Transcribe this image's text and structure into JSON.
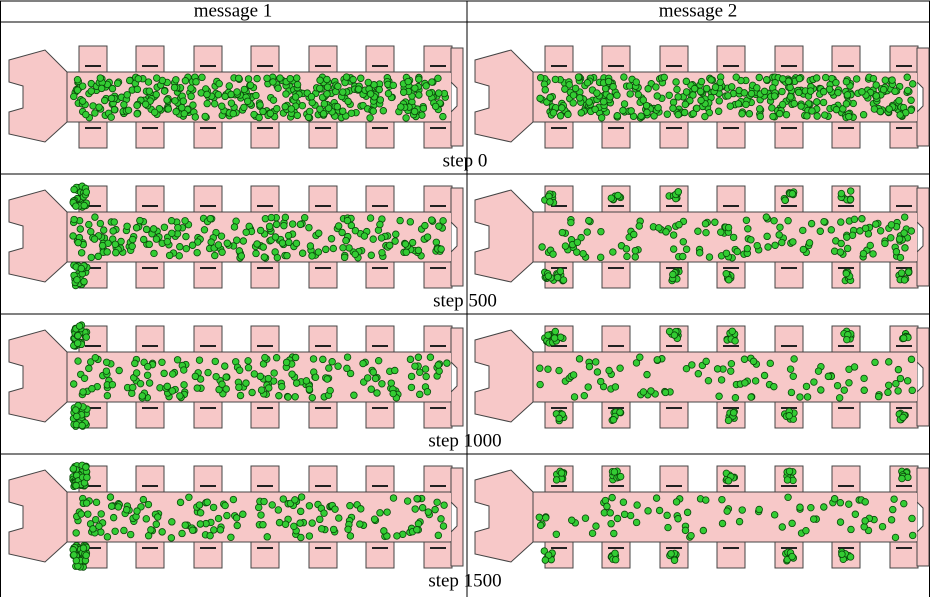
{
  "table": {
    "header": [
      "message 1",
      "message 2"
    ],
    "rows": [
      {
        "label": "step 0"
      },
      {
        "label": "step 500"
      },
      {
        "label": "step 1000"
      },
      {
        "label": "step 1500"
      }
    ]
  }
}
